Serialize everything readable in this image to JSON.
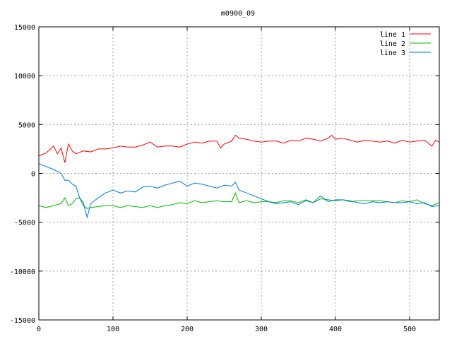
{
  "chart_data": {
    "type": "line",
    "title": "m0900_09",
    "xlabel": "",
    "ylabel": "",
    "xlim": [
      0,
      540
    ],
    "ylim": [
      -15000,
      15000
    ],
    "x_ticks": [
      0,
      100,
      200,
      300,
      400,
      500
    ],
    "y_ticks": [
      -15000,
      -10000,
      -5000,
      0,
      5000,
      10000,
      15000
    ],
    "grid": true,
    "legend_position": "top-right",
    "series": [
      {
        "name": "line 1",
        "color": "#ff0000",
        "points": [
          [
            0,
            1800
          ],
          [
            10,
            2100
          ],
          [
            20,
            2800
          ],
          [
            25,
            2000
          ],
          [
            30,
            2600
          ],
          [
            35,
            1100
          ],
          [
            40,
            3000
          ],
          [
            45,
            2300
          ],
          [
            50,
            2000
          ],
          [
            60,
            2300
          ],
          [
            70,
            2200
          ],
          [
            80,
            2500
          ],
          [
            90,
            2500
          ],
          [
            100,
            2600
          ],
          [
            110,
            2800
          ],
          [
            120,
            2700
          ],
          [
            130,
            2700
          ],
          [
            140,
            2900
          ],
          [
            150,
            3200
          ],
          [
            160,
            2700
          ],
          [
            170,
            2800
          ],
          [
            180,
            2800
          ],
          [
            190,
            2700
          ],
          [
            200,
            3000
          ],
          [
            210,
            3200
          ],
          [
            220,
            3100
          ],
          [
            230,
            3300
          ],
          [
            240,
            3300
          ],
          [
            245,
            2600
          ],
          [
            250,
            3000
          ],
          [
            260,
            3300
          ],
          [
            265,
            3900
          ],
          [
            270,
            3600
          ],
          [
            280,
            3500
          ],
          [
            290,
            3300
          ],
          [
            300,
            3200
          ],
          [
            310,
            3300
          ],
          [
            320,
            3300
          ],
          [
            330,
            3100
          ],
          [
            340,
            3400
          ],
          [
            350,
            3300
          ],
          [
            360,
            3600
          ],
          [
            370,
            3500
          ],
          [
            380,
            3300
          ],
          [
            390,
            3600
          ],
          [
            395,
            3900
          ],
          [
            400,
            3500
          ],
          [
            410,
            3600
          ],
          [
            420,
            3400
          ],
          [
            430,
            3200
          ],
          [
            440,
            3400
          ],
          [
            450,
            3300
          ],
          [
            460,
            3200
          ],
          [
            470,
            3300
          ],
          [
            480,
            3100
          ],
          [
            490,
            3400
          ],
          [
            500,
            3200
          ],
          [
            510,
            3300
          ],
          [
            520,
            3400
          ],
          [
            530,
            2800
          ],
          [
            535,
            3400
          ],
          [
            540,
            3200
          ]
        ]
      },
      {
        "name": "line 2",
        "color": "#00bb00",
        "points": [
          [
            0,
            -3300
          ],
          [
            10,
            -3500
          ],
          [
            20,
            -3300
          ],
          [
            30,
            -3100
          ],
          [
            35,
            -2500
          ],
          [
            40,
            -3300
          ],
          [
            45,
            -3100
          ],
          [
            50,
            -2600
          ],
          [
            55,
            -2500
          ],
          [
            60,
            -3300
          ],
          [
            65,
            -3600
          ],
          [
            70,
            -3500
          ],
          [
            80,
            -3400
          ],
          [
            90,
            -3300
          ],
          [
            100,
            -3300
          ],
          [
            110,
            -3500
          ],
          [
            120,
            -3300
          ],
          [
            130,
            -3400
          ],
          [
            140,
            -3500
          ],
          [
            150,
            -3300
          ],
          [
            160,
            -3500
          ],
          [
            170,
            -3300
          ],
          [
            180,
            -3200
          ],
          [
            190,
            -3000
          ],
          [
            200,
            -3100
          ],
          [
            210,
            -2800
          ],
          [
            220,
            -3000
          ],
          [
            230,
            -2900
          ],
          [
            240,
            -2800
          ],
          [
            250,
            -2900
          ],
          [
            260,
            -2900
          ],
          [
            265,
            -2000
          ],
          [
            270,
            -3000
          ],
          [
            280,
            -2800
          ],
          [
            290,
            -3000
          ],
          [
            300,
            -2900
          ],
          [
            310,
            -2900
          ],
          [
            320,
            -3000
          ],
          [
            330,
            -2800
          ],
          [
            340,
            -2800
          ],
          [
            350,
            -3000
          ],
          [
            360,
            -2700
          ],
          [
            370,
            -3000
          ],
          [
            380,
            -2600
          ],
          [
            390,
            -2700
          ],
          [
            400,
            -2800
          ],
          [
            410,
            -2700
          ],
          [
            420,
            -2900
          ],
          [
            430,
            -2800
          ],
          [
            440,
            -2800
          ],
          [
            450,
            -2800
          ],
          [
            460,
            -2800
          ],
          [
            470,
            -2900
          ],
          [
            480,
            -3000
          ],
          [
            490,
            -2800
          ],
          [
            500,
            -2900
          ],
          [
            510,
            -2700
          ],
          [
            520,
            -3100
          ],
          [
            530,
            -3300
          ],
          [
            540,
            -3000
          ]
        ]
      },
      {
        "name": "line 3",
        "color": "#0077dd",
        "points": [
          [
            0,
            1000
          ],
          [
            10,
            700
          ],
          [
            20,
            400
          ],
          [
            30,
            0
          ],
          [
            35,
            -700
          ],
          [
            40,
            -700
          ],
          [
            45,
            -1100
          ],
          [
            50,
            -1300
          ],
          [
            55,
            -2500
          ],
          [
            60,
            -3000
          ],
          [
            65,
            -4500
          ],
          [
            70,
            -3100
          ],
          [
            80,
            -2500
          ],
          [
            90,
            -2000
          ],
          [
            100,
            -1700
          ],
          [
            110,
            -2000
          ],
          [
            120,
            -1800
          ],
          [
            130,
            -1900
          ],
          [
            140,
            -1400
          ],
          [
            150,
            -1300
          ],
          [
            160,
            -1500
          ],
          [
            170,
            -1200
          ],
          [
            180,
            -1000
          ],
          [
            190,
            -800
          ],
          [
            200,
            -1300
          ],
          [
            210,
            -1000
          ],
          [
            220,
            -1100
          ],
          [
            230,
            -1300
          ],
          [
            240,
            -1500
          ],
          [
            250,
            -1200
          ],
          [
            260,
            -1300
          ],
          [
            265,
            -900
          ],
          [
            270,
            -1700
          ],
          [
            280,
            -2000
          ],
          [
            290,
            -2300
          ],
          [
            300,
            -2600
          ],
          [
            310,
            -2900
          ],
          [
            320,
            -3100
          ],
          [
            330,
            -3000
          ],
          [
            340,
            -2900
          ],
          [
            350,
            -3200
          ],
          [
            360,
            -2800
          ],
          [
            370,
            -3000
          ],
          [
            380,
            -2300
          ],
          [
            390,
            -2900
          ],
          [
            400,
            -2700
          ],
          [
            410,
            -2700
          ],
          [
            420,
            -2800
          ],
          [
            430,
            -3000
          ],
          [
            440,
            -3100
          ],
          [
            450,
            -2900
          ],
          [
            460,
            -3000
          ],
          [
            470,
            -2900
          ],
          [
            480,
            -3000
          ],
          [
            490,
            -3000
          ],
          [
            500,
            -2900
          ],
          [
            510,
            -3100
          ],
          [
            520,
            -3000
          ],
          [
            530,
            -3400
          ],
          [
            540,
            -3300
          ]
        ]
      }
    ]
  }
}
